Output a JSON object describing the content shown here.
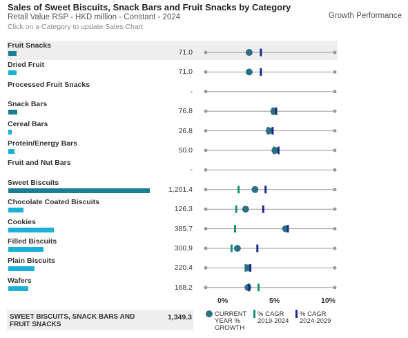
{
  "header": {
    "title": "Sales of Sweet Biscuits, Snack Bars and Fruit Snacks by Category",
    "subtitle": "Retail Value RSP - HKD million - Constant - 2024",
    "hint": "Click on a Category to update Sales Chart",
    "growth_title": "Growth Performance"
  },
  "colors": {
    "bar_parent": "#1a7f94",
    "bar_child": "#1ab0d8",
    "dot": "#2f6f84",
    "cagr_hist": "#12907a",
    "cagr_fcst": "#1b2a8c",
    "track": "#999999",
    "selected_bg": "#eeeeee"
  },
  "chart_data": {
    "type": "bar",
    "title": "Sales of Sweet Biscuits, Snack Bars and Fruit Snacks by Category",
    "unit": "HKD million",
    "growth_axis": {
      "ticks": [
        "0%",
        "5%",
        "10%"
      ],
      "range": [
        -1,
        10
      ]
    },
    "categories": [
      {
        "name": "Fruit Snacks",
        "value": 71.0,
        "display": "71.0",
        "level": "parent",
        "selected": true,
        "current": 2.7,
        "cagr_hist": null,
        "cagr_fcst": 3.7
      },
      {
        "name": "Dried Fruit",
        "value": 71.0,
        "display": "71.0",
        "level": "child",
        "current": 2.7,
        "cagr_hist": null,
        "cagr_fcst": 3.7
      },
      {
        "name": "Processed Fruit Snacks",
        "value": null,
        "display": "-",
        "level": "child",
        "current": null,
        "cagr_hist": null,
        "cagr_fcst": null
      },
      {
        "name": "Snack Bars",
        "value": 76.8,
        "display": "76.8",
        "level": "parent",
        "current": 4.8,
        "cagr_hist": 4.7,
        "cagr_fcst": 5.0
      },
      {
        "name": "Cereal Bars",
        "value": 26.8,
        "display": "26.8",
        "level": "child",
        "current": 4.4,
        "cagr_hist": 4.3,
        "cagr_fcst": 4.7
      },
      {
        "name": "Protein/Energy Bars",
        "value": 50.0,
        "display": "50.0",
        "level": "child",
        "current": 4.9,
        "cagr_hist": 4.8,
        "cagr_fcst": 5.2
      },
      {
        "name": "Fruit and Nut Bars",
        "value": null,
        "display": "-",
        "level": "child",
        "current": null,
        "cagr_hist": null,
        "cagr_fcst": null
      },
      {
        "name": "Sweet Biscuits",
        "value": 1201.4,
        "display": "1,201.4",
        "level": "parent",
        "current": 3.2,
        "cagr_hist": 1.8,
        "cagr_fcst": 4.1
      },
      {
        "name": "Chocolate Coated Biscuits",
        "value": 126.3,
        "display": "126.3",
        "level": "child",
        "current": 2.4,
        "cagr_hist": 1.6,
        "cagr_fcst": 3.9
      },
      {
        "name": "Cookies",
        "value": 385.7,
        "display": "385.7",
        "level": "child",
        "current": 5.8,
        "cagr_hist": 1.5,
        "cagr_fcst": 6.0
      },
      {
        "name": "Filled Biscuits",
        "value": 300.9,
        "display": "300.9",
        "level": "child",
        "current": 1.7,
        "cagr_hist": 1.2,
        "cagr_fcst": 3.4
      },
      {
        "name": "Plain Biscuits",
        "value": 220.4,
        "display": "220.4",
        "level": "child",
        "current": 2.6,
        "cagr_hist": 2.4,
        "cagr_fcst": 2.8
      },
      {
        "name": "Wafers",
        "value": 168.2,
        "display": "168.2",
        "level": "child",
        "current": 2.6,
        "cagr_hist": 3.5,
        "cagr_fcst": 2.7
      }
    ],
    "total": {
      "name": "SWEET BISCUITS, SNACK BARS AND FRUIT SNACKS",
      "value": 1349.3,
      "display": "1,349.3"
    },
    "legend": {
      "current": "CURRENT YEAR % GROWTH",
      "cagr_hist": "% CAGR 2019-2024",
      "cagr_fcst": "% CAGR 2024-2029"
    }
  }
}
